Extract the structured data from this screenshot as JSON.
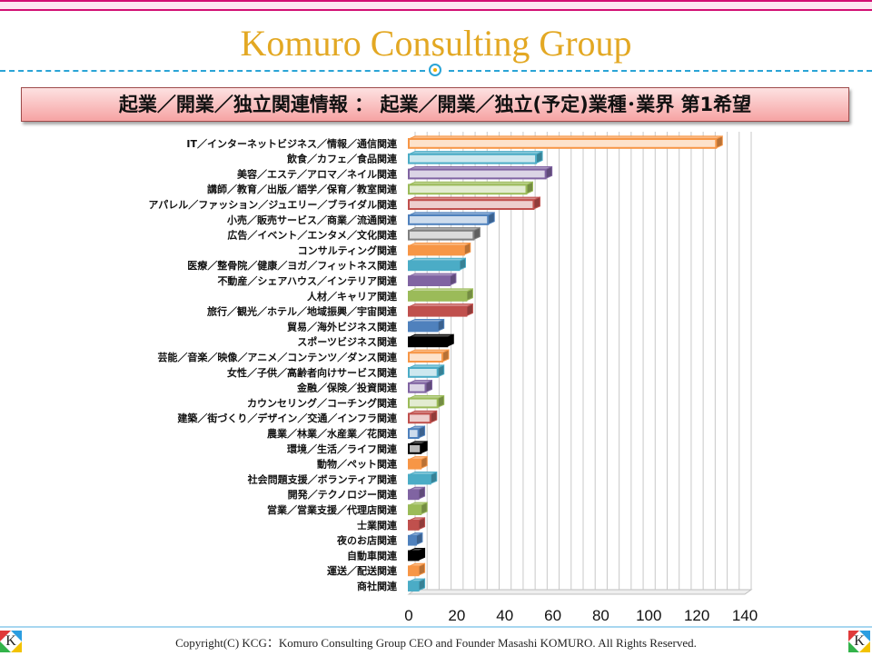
{
  "header": {
    "title": "Komuro Consulting Group",
    "subtitle": "起業／開業／独立関連情報 ： 起業／開業／独立(予定)業種･業界 第1希望"
  },
  "footer": {
    "copyright": "Copyright(C) KCG：Komuro Consulting Group CEO and Founder Masashi KOMURO. All Rights Reserved.",
    "logo_letter": "K"
  },
  "colors": {
    "accent_pink": "#d20f73",
    "title_gold": "#e3a823",
    "dash_blue": "#2aa4d6"
  },
  "chart_data": {
    "type": "bar",
    "orientation": "horizontal",
    "style": "3d",
    "title": "",
    "xlabel": "",
    "ylabel": "",
    "xlim": [
      0,
      140
    ],
    "x_ticks": [
      0,
      20,
      40,
      60,
      80,
      100,
      120,
      140
    ],
    "grid": true,
    "legend": "none",
    "categories": [
      "IT／インターネットビジネス／情報／通信関連",
      "飲食／カフェ／食品関連",
      "美容／エステ／アロマ／ネイル関連",
      "講師／教育／出版／語学／保育／教室関連",
      "アパレル／ファッション／ジュエリー／ブライダル関連",
      "小売／販売サービス／商業／流通関連",
      "広告／イベント／エンタメ／文化関連",
      "コンサルティング関連",
      "医療／整骨院／健康／ヨガ／フィットネス関連",
      "不動産／シェアハウス／インテリア関連",
      "人材／キャリア関連",
      "旅行／観光／ホテル／地域振興／宇宙関連",
      "貿易／海外ビジネス関連",
      "スポーツビジネス関連",
      "芸能／音楽／映像／アニメ／コンテンツ／ダンス関連",
      "女性／子供／高齢者向けサービス関連",
      "金融／保険／投資関連",
      "カウンセリング／コーチング関連",
      "建築／街づくり／デザイン／交通／インフラ関連",
      "農業／林業／水産業／花関連",
      "環境／生活／ライフ関連",
      "動物／ペット関連",
      "社会問題支援／ボランティア関連",
      "開発／テクノロジー関連",
      "営業／営業支援／代理店関連",
      "士業関連",
      "夜のお店関連",
      "自動車関連",
      "運送／配送関連",
      "商社関連"
    ],
    "values": [
      128,
      53,
      57,
      49,
      52,
      33,
      27,
      23,
      21,
      17,
      24,
      24,
      12,
      16,
      14,
      12,
      7,
      12,
      9,
      4,
      5,
      5,
      9,
      4,
      5,
      4,
      3,
      4,
      4,
      4
    ],
    "bar_colors": [
      "#f79646",
      "#4bacc6",
      "#8064a2",
      "#9bbb59",
      "#c0504d",
      "#4f81bd",
      "#7f7f7f",
      "#f79646",
      "#4bacc6",
      "#8064a2",
      "#9bbb59",
      "#c0504d",
      "#4f81bd",
      "#000000",
      "#f79646",
      "#4bacc6",
      "#8064a2",
      "#9bbb59",
      "#c0504d",
      "#4f81bd",
      "#000000",
      "#f79646",
      "#4bacc6",
      "#8064a2",
      "#9bbb59",
      "#c0504d",
      "#4f81bd",
      "#000000",
      "#f79646",
      "#4bacc6"
    ],
    "bar_fill_light": [
      true,
      true,
      true,
      true,
      true,
      true,
      true,
      false,
      false,
      false,
      false,
      false,
      false,
      false,
      true,
      true,
      true,
      true,
      true,
      true,
      true,
      false,
      false,
      false,
      false,
      false,
      false,
      false,
      false,
      false
    ]
  }
}
